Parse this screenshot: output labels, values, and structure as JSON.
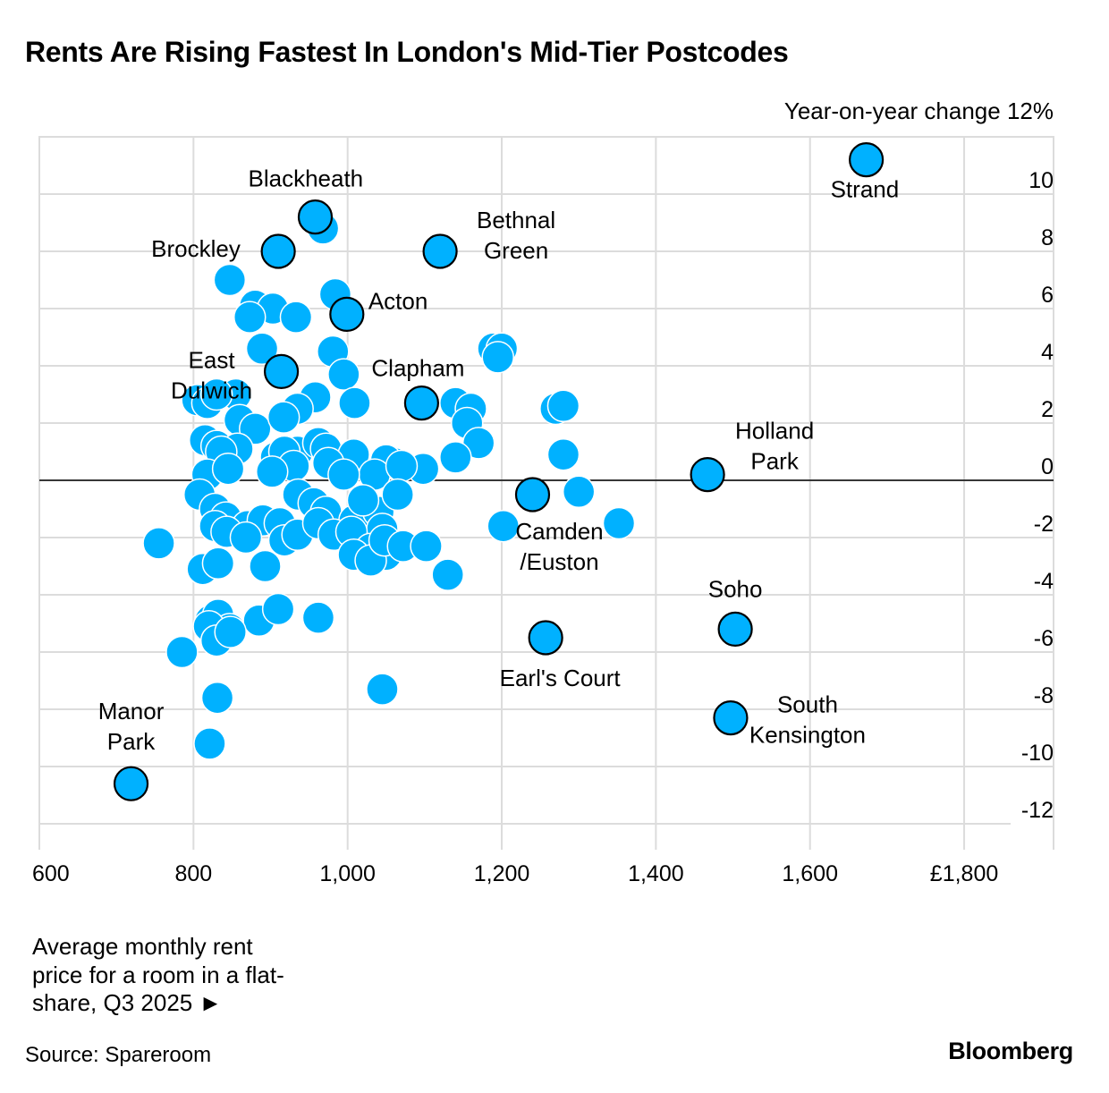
{
  "title": "Rents Are Rising Fastest In London's Mid-Tier Postcodes",
  "colors": {
    "dot": "#00b1ff",
    "grid": "#dcdcdc",
    "zero_line": "#000000"
  },
  "chart_data": {
    "type": "scatter",
    "ylabel": "Year-on-year change 12%",
    "xlabel_note": "Average monthly rent price for a room in a flat-share, Q3 2025 ►",
    "x_ticks": [
      "600",
      "800",
      "1,000",
      "1,200",
      "1,400",
      "1,600",
      "£1,800"
    ],
    "x_tick_values": [
      600,
      800,
      1000,
      1200,
      1400,
      1600,
      1800
    ],
    "y_ticks": [
      "10",
      "8",
      "6",
      "4",
      "2",
      "0",
      "-2",
      "-4",
      "-6",
      "-8",
      "-10",
      "-12"
    ],
    "y_tick_values": [
      10,
      8,
      6,
      4,
      2,
      0,
      -2,
      -4,
      -6,
      -8,
      -10,
      -12
    ],
    "xlim": [
      600,
      1860
    ],
    "ylim": [
      -12.3,
      11.8
    ],
    "grid": true,
    "labeled_points": [
      {
        "label": "Strand",
        "x": 1673,
        "y": 11.2
      },
      {
        "label": "Blackheath",
        "x": 958,
        "y": 9.2
      },
      {
        "label": "Brockley",
        "x": 910,
        "y": 8.0
      },
      {
        "label": "Bethnal Green",
        "x": 1120,
        "y": 8.0
      },
      {
        "label": "Acton",
        "x": 999,
        "y": 5.8
      },
      {
        "label": "East Dulwich",
        "x": 914,
        "y": 3.8
      },
      {
        "label": "Clapham",
        "x": 1096,
        "y": 2.7
      },
      {
        "label": "Holland Park",
        "x": 1467,
        "y": 0.2
      },
      {
        "label": "Camden /Euston",
        "x": 1240,
        "y": -0.5
      },
      {
        "label": "Soho",
        "x": 1503,
        "y": -5.2
      },
      {
        "label": "Earl's Court",
        "x": 1257,
        "y": -5.5
      },
      {
        "label": "South Kensington",
        "x": 1497,
        "y": -8.3
      },
      {
        "label": "Manor Park",
        "x": 719,
        "y": -10.6
      }
    ],
    "points": [
      [
        968,
        8.8
      ],
      [
        984,
        6.5
      ],
      [
        847,
        7.0
      ],
      [
        880,
        6.1
      ],
      [
        903,
        6.0
      ],
      [
        873,
        5.7
      ],
      [
        933,
        5.7
      ],
      [
        889,
        4.6
      ],
      [
        981,
        4.5
      ],
      [
        995,
        3.7
      ],
      [
        1189,
        4.6
      ],
      [
        1200,
        4.6
      ],
      [
        1195,
        4.3
      ],
      [
        855,
        3.0
      ],
      [
        805,
        2.8
      ],
      [
        818,
        2.7
      ],
      [
        830,
        3.0
      ],
      [
        958,
        2.9
      ],
      [
        935,
        2.5
      ],
      [
        1009,
        2.7
      ],
      [
        1140,
        2.7
      ],
      [
        1160,
        2.5
      ],
      [
        1270,
        2.5
      ],
      [
        1280,
        2.6
      ],
      [
        860,
        2.1
      ],
      [
        880,
        1.8
      ],
      [
        917,
        2.2
      ],
      [
        1155,
        2.0
      ],
      [
        1170,
        1.3
      ],
      [
        1280,
        0.9
      ],
      [
        815,
        1.4
      ],
      [
        830,
        1.2
      ],
      [
        857,
        1.1
      ],
      [
        836,
        1.0
      ],
      [
        935,
        1.0
      ],
      [
        907,
        0.8
      ],
      [
        918,
        1.0
      ],
      [
        962,
        1.3
      ],
      [
        972,
        1.1
      ],
      [
        1008,
        0.9
      ],
      [
        1060,
        0.6
      ],
      [
        1098,
        0.4
      ],
      [
        1140,
        0.8
      ],
      [
        1050,
        0.7
      ],
      [
        1035,
        0.2
      ],
      [
        1070,
        0.5
      ],
      [
        818,
        0.2
      ],
      [
        845,
        0.4
      ],
      [
        930,
        0.5
      ],
      [
        902,
        0.3
      ],
      [
        975,
        0.6
      ],
      [
        995,
        0.2
      ],
      [
        808,
        -0.5
      ],
      [
        828,
        -1.0
      ],
      [
        842,
        -1.3
      ],
      [
        870,
        -1.6
      ],
      [
        890,
        -1.4
      ],
      [
        912,
        -1.5
      ],
      [
        936,
        -0.5
      ],
      [
        956,
        -0.8
      ],
      [
        972,
        -1.1
      ],
      [
        1009,
        -1.4
      ],
      [
        1040,
        -1.1
      ],
      [
        1065,
        -0.5
      ],
      [
        1020,
        -0.7
      ],
      [
        1045,
        -1.7
      ],
      [
        1300,
        -0.4
      ],
      [
        1352,
        -1.5
      ],
      [
        1202,
        -1.6
      ],
      [
        755,
        -2.2
      ],
      [
        812,
        -3.1
      ],
      [
        828,
        -1.6
      ],
      [
        843,
        -1.8
      ],
      [
        868,
        -2.0
      ],
      [
        893,
        -3.0
      ],
      [
        918,
        -2.1
      ],
      [
        935,
        -1.9
      ],
      [
        962,
        -1.5
      ],
      [
        982,
        -1.9
      ],
      [
        1005,
        -1.8
      ],
      [
        1030,
        -2.4
      ],
      [
        1050,
        -2.6
      ],
      [
        1008,
        -2.6
      ],
      [
        1030,
        -2.8
      ],
      [
        1048,
        -2.1
      ],
      [
        1072,
        -2.3
      ],
      [
        1102,
        -2.3
      ],
      [
        1130,
        -3.3
      ],
      [
        832,
        -2.9
      ],
      [
        822,
        -4.9
      ],
      [
        832,
        -4.7
      ],
      [
        847,
        -5.2
      ],
      [
        885,
        -4.9
      ],
      [
        910,
        -4.5
      ],
      [
        962,
        -4.8
      ],
      [
        820,
        -5.1
      ],
      [
        830,
        -5.6
      ],
      [
        848,
        -5.3
      ],
      [
        785,
        -6.0
      ],
      [
        831,
        -7.6
      ],
      [
        821,
        -9.2
      ],
      [
        1045,
        -7.3
      ]
    ]
  },
  "source": "Source: Spareroom",
  "brand": "Bloomberg"
}
